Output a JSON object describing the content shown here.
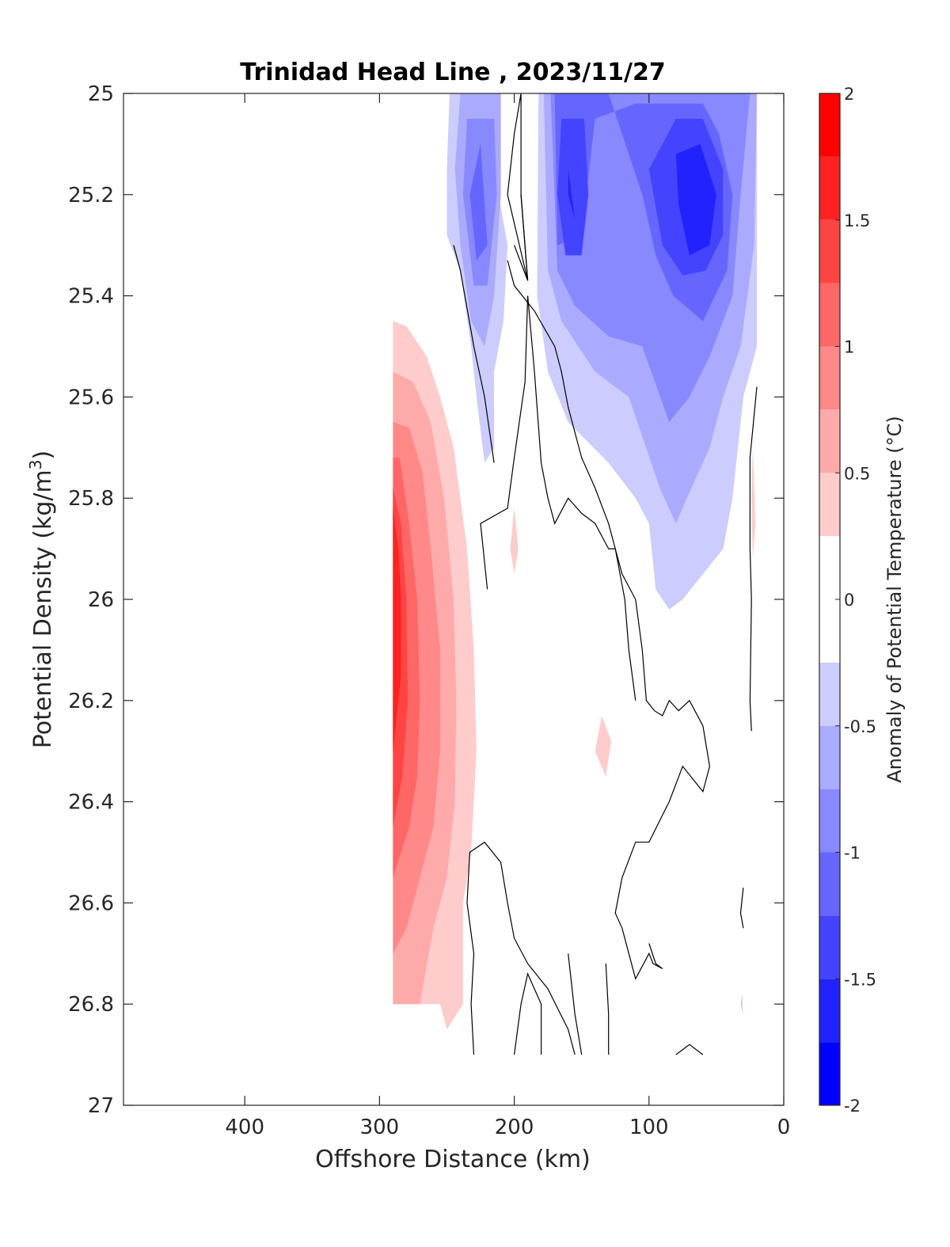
{
  "chart_data": {
    "type": "heatmap",
    "title": "Trinidad Head Line , 2023/11/27",
    "xlabel": "Offshore Distance (km)",
    "ylabel_main": "Potential Density (kg/m",
    "ylabel_sup": "3",
    "ylabel_close": ")",
    "colorbar_label": "Anomaly of Potential Temperature (°C)",
    "xlim": [
      490,
      0
    ],
    "x_reversed": true,
    "ylim": [
      25,
      27
    ],
    "y_reversed": true,
    "xticks": [
      400,
      300,
      200,
      100,
      0
    ],
    "yticks": [
      25,
      25.2,
      25.4,
      25.6,
      25.8,
      26,
      26.2,
      26.4,
      26.6,
      26.8,
      27
    ],
    "ytick_labels": [
      "25",
      "25.2",
      "25.4",
      "25.6",
      "25.8",
      "26",
      "26.2",
      "26.4",
      "26.6",
      "26.8",
      "27"
    ],
    "grid": false,
    "colorbar": {
      "limits": [
        -2,
        2
      ],
      "step": 0.25,
      "tick_values": [
        2,
        1.5,
        1,
        0.5,
        0,
        -0.5,
        -1,
        -1.5,
        -2
      ],
      "tick_labels": [
        "2",
        "1.5",
        "1",
        "0.5",
        "0",
        "-0.5",
        "-1",
        "-1.5",
        "-2"
      ],
      "colors": [
        "#0000ff",
        "#2222ff",
        "#4444ff",
        "#6666ff",
        "#8888ff",
        "#aaaaff",
        "#ccccff",
        "#ffffff",
        "#ffffff",
        "#ffcccc",
        "#ffaaaa",
        "#ff8888",
        "#ff6666",
        "#ff4444",
        "#ff2222",
        "#ff0000"
      ]
    },
    "contour_regions": [
      {
        "level": -0.25,
        "color": "#ccccff",
        "points": [
          [
            205,
            25
          ],
          [
            225,
            25
          ],
          [
            215,
            25.15
          ],
          [
            205,
            25.3
          ],
          [
            208,
            25.45
          ],
          [
            215,
            25.55
          ],
          [
            215,
            25.7
          ],
          [
            222,
            25.73
          ],
          [
            228,
            25.6
          ],
          [
            232,
            25.5
          ],
          [
            240,
            25.35
          ],
          [
            250,
            25.28
          ],
          [
            250,
            25.15
          ],
          [
            248,
            25
          ]
        ]
      },
      {
        "level": -0.5,
        "color": "#aaaaff",
        "points": [
          [
            210,
            25
          ],
          [
            240,
            25
          ],
          [
            244,
            25.15
          ],
          [
            240,
            25.3
          ],
          [
            232,
            25.45
          ],
          [
            222,
            25.5
          ],
          [
            215,
            25.4
          ],
          [
            210,
            25.2
          ]
        ]
      },
      {
        "level": -0.75,
        "color": "#8888ff",
        "points": [
          [
            215,
            25.05
          ],
          [
            235,
            25.05
          ],
          [
            238,
            25.2
          ],
          [
            230,
            25.38
          ],
          [
            220,
            25.38
          ],
          [
            213,
            25.2
          ]
        ]
      },
      {
        "level": -1.0,
        "color": "#6666ff",
        "points": [
          [
            225,
            25.1
          ],
          [
            233,
            25.2
          ],
          [
            228,
            25.33
          ],
          [
            220,
            25.3
          ]
        ]
      },
      {
        "level": -0.25,
        "color": "#ccccff",
        "points": [
          [
            182,
            25
          ],
          [
            20,
            25
          ],
          [
            20,
            25.5
          ],
          [
            30,
            25.6
          ],
          [
            38,
            25.8
          ],
          [
            45,
            25.9
          ],
          [
            60,
            25.95
          ],
          [
            75,
            26
          ],
          [
            85,
            26.02
          ],
          [
            95,
            25.98
          ],
          [
            100,
            25.85
          ],
          [
            110,
            25.8
          ],
          [
            130,
            25.73
          ],
          [
            160,
            25.65
          ],
          [
            175,
            25.55
          ],
          [
            183,
            25.4
          ]
        ]
      },
      {
        "level": -0.5,
        "color": "#aaaaff",
        "points": [
          [
            178,
            25
          ],
          [
            20,
            25
          ],
          [
            22,
            25.3
          ],
          [
            32,
            25.5
          ],
          [
            45,
            25.6
          ],
          [
            55,
            25.7
          ],
          [
            72,
            25.8
          ],
          [
            80,
            25.85
          ],
          [
            92,
            25.78
          ],
          [
            115,
            25.6
          ],
          [
            140,
            25.55
          ],
          [
            165,
            25.45
          ],
          [
            175,
            25.35
          ]
        ]
      },
      {
        "level": -0.75,
        "color": "#8888ff",
        "points": [
          [
            173,
            25
          ],
          [
            25,
            25
          ],
          [
            32,
            25.2
          ],
          [
            38,
            25.4
          ],
          [
            55,
            25.52
          ],
          [
            70,
            25.6
          ],
          [
            85,
            25.65
          ],
          [
            105,
            25.5
          ],
          [
            130,
            25.48
          ],
          [
            155,
            25.42
          ],
          [
            168,
            25.35
          ]
        ]
      },
      {
        "level": -1.0,
        "color": "#6666ff",
        "points": [
          [
            170,
            25
          ],
          [
            130,
            25
          ],
          [
            115,
            25.12
          ],
          [
            105,
            25.2
          ],
          [
            95,
            25.32
          ],
          [
            82,
            25.4
          ],
          [
            60,
            25.45
          ],
          [
            42,
            25.35
          ],
          [
            38,
            25.2
          ],
          [
            48,
            25.08
          ],
          [
            60,
            25.02
          ],
          [
            110,
            25.02
          ],
          [
            140,
            25.05
          ],
          [
            150,
            25.28
          ],
          [
            168,
            25.3
          ]
        ]
      },
      {
        "level": -1.25,
        "color": "#4444ff",
        "points": [
          [
            165,
            25.05
          ],
          [
            148,
            25.05
          ],
          [
            145,
            25.2
          ],
          [
            150,
            25.32
          ],
          [
            162,
            25.32
          ],
          [
            168,
            25.2
          ]
        ]
      },
      {
        "level": -1.25,
        "color": "#4444ff",
        "points": [
          [
            100,
            25.15
          ],
          [
            80,
            25.05
          ],
          [
            60,
            25.05
          ],
          [
            45,
            25.15
          ],
          [
            45,
            25.28
          ],
          [
            58,
            25.35
          ],
          [
            75,
            25.36
          ],
          [
            90,
            25.3
          ]
        ]
      },
      {
        "level": -1.5,
        "color": "#2222ff",
        "points": [
          [
            80,
            25.12
          ],
          [
            62,
            25.1
          ],
          [
            50,
            25.2
          ],
          [
            55,
            25.3
          ],
          [
            70,
            25.32
          ],
          [
            78,
            25.22
          ]
        ]
      },
      {
        "level": -1.5,
        "color": "#2222ff",
        "points": [
          [
            160,
            25.15
          ],
          [
            155,
            25.25
          ],
          [
            160,
            25.2
          ]
        ]
      },
      {
        "level": 0.25,
        "color": "#ffcccc",
        "points": [
          [
            290,
            25.45
          ],
          [
            280,
            25.46
          ],
          [
            265,
            25.52
          ],
          [
            255,
            25.6
          ],
          [
            245,
            25.7
          ],
          [
            235,
            25.9
          ],
          [
            230,
            26.1
          ],
          [
            228,
            26.3
          ],
          [
            232,
            26.5
          ],
          [
            238,
            26.6
          ],
          [
            238,
            26.8
          ],
          [
            250,
            26.85
          ],
          [
            255,
            26.8
          ],
          [
            290,
            26.8
          ]
        ]
      },
      {
        "level": 0.5,
        "color": "#ffaaaa",
        "points": [
          [
            290,
            25.55
          ],
          [
            275,
            25.57
          ],
          [
            262,
            25.65
          ],
          [
            252,
            25.8
          ],
          [
            245,
            26
          ],
          [
            243,
            26.2
          ],
          [
            244,
            26.4
          ],
          [
            250,
            26.55
          ],
          [
            260,
            26.65
          ],
          [
            270,
            26.8
          ],
          [
            290,
            26.8
          ]
        ]
      },
      {
        "level": 0.75,
        "color": "#ff8888",
        "points": [
          [
            290,
            25.65
          ],
          [
            278,
            25.66
          ],
          [
            268,
            25.75
          ],
          [
            262,
            25.9
          ],
          [
            255,
            26.1
          ],
          [
            255,
            26.3
          ],
          [
            260,
            26.45
          ],
          [
            270,
            26.55
          ],
          [
            280,
            26.65
          ],
          [
            290,
            26.7
          ]
        ]
      },
      {
        "level": 1.0,
        "color": "#ff6666",
        "points": [
          [
            290,
            25.72
          ],
          [
            285,
            25.72
          ],
          [
            278,
            25.85
          ],
          [
            272,
            26
          ],
          [
            270,
            26.2
          ],
          [
            272,
            26.35
          ],
          [
            278,
            26.45
          ],
          [
            290,
            26.55
          ]
        ]
      },
      {
        "level": 1.25,
        "color": "#ff4444",
        "points": [
          [
            290,
            25.78
          ],
          [
            284,
            25.85
          ],
          [
            280,
            26
          ],
          [
            279,
            26.2
          ],
          [
            283,
            26.35
          ],
          [
            290,
            26.45
          ]
        ]
      },
      {
        "level": 1.5,
        "color": "#ff2222",
        "points": [
          [
            290,
            25.82
          ],
          [
            286,
            25.9
          ],
          [
            284,
            26
          ],
          [
            284,
            26.15
          ],
          [
            288,
            26.25
          ],
          [
            290,
            26.3
          ]
        ]
      },
      {
        "level": 0.25,
        "color": "#ffcccc",
        "points": [
          [
            200,
            25.82
          ],
          [
            197,
            25.9
          ],
          [
            200,
            25.95
          ],
          [
            203,
            25.9
          ]
        ]
      },
      {
        "level": 0.25,
        "color": "#ffcccc",
        "points": [
          [
            135,
            26.23
          ],
          [
            128,
            26.28
          ],
          [
            132,
            26.35
          ],
          [
            140,
            26.3
          ]
        ]
      },
      {
        "level": 0.25,
        "color": "#ffcccc",
        "points": [
          [
            23,
            25.7
          ],
          [
            21,
            25.85
          ],
          [
            23,
            25.92
          ],
          [
            24,
            25.8
          ]
        ]
      },
      {
        "level": -0.25,
        "color": "#ccccff",
        "points": [
          [
            32,
            26.8
          ],
          [
            30,
            26.82
          ],
          [
            31,
            26.78
          ]
        ]
      }
    ],
    "zero_contours": [
      [
        [
          205,
          25.33
        ],
        [
          200,
          25.38
        ],
        [
          185,
          25.43
        ],
        [
          170,
          25.5
        ],
        [
          165,
          25.55
        ],
        [
          160,
          25.62
        ],
        [
          150,
          25.72
        ],
        [
          140,
          25.78
        ],
        [
          130,
          25.85
        ],
        [
          125,
          25.9
        ],
        [
          120,
          25.95
        ],
        [
          110,
          26
        ],
        [
          105,
          26.1
        ],
        [
          102,
          26.2
        ],
        [
          96,
          26.22
        ],
        [
          90,
          26.23
        ],
        [
          85,
          26.2
        ],
        [
          78,
          26.22
        ],
        [
          70,
          26.2
        ],
        [
          60,
          26.25
        ],
        [
          55,
          26.33
        ],
        [
          60,
          26.38
        ],
        [
          75,
          26.33
        ],
        [
          85,
          26.4
        ],
        [
          100,
          26.48
        ],
        [
          110,
          26.48
        ],
        [
          120,
          26.55
        ],
        [
          125,
          26.62
        ],
        [
          120,
          26.65
        ],
        [
          115,
          26.7
        ],
        [
          110,
          26.75
        ],
        [
          100,
          26.7
        ],
        [
          97,
          26.72
        ],
        [
          90,
          26.73
        ],
        [
          95,
          26.72
        ],
        [
          100,
          26.68
        ]
      ],
      [
        [
          195,
          25
        ],
        [
          200,
          25.08
        ],
        [
          205,
          25.2
        ],
        [
          190,
          25.37
        ],
        [
          195,
          25.2
        ]
      ],
      [
        [
          195,
          25
        ],
        [
          195,
          25.2
        ],
        [
          190,
          25.37
        ],
        [
          200,
          25.3
        ]
      ],
      [
        [
          215,
          25.73
        ],
        [
          222,
          25.6
        ],
        [
          230,
          25.5
        ],
        [
          240,
          25.35
        ],
        [
          245,
          25.3
        ]
      ],
      [
        [
          220,
          25.98
        ],
        [
          225,
          25.85
        ],
        [
          205,
          25.82
        ],
        [
          200,
          25.72
        ],
        [
          192,
          25.57
        ],
        [
          190,
          25.4
        ],
        [
          185,
          25.55
        ],
        [
          180,
          25.73
        ],
        [
          175,
          25.8
        ],
        [
          170,
          25.85
        ],
        [
          160,
          25.8
        ],
        [
          150,
          25.83
        ],
        [
          140,
          25.85
        ],
        [
          130,
          25.9
        ],
        [
          125,
          25.9
        ],
        [
          118,
          26.0
        ],
        [
          115,
          26.1
        ],
        [
          110,
          26.2
        ]
      ],
      [
        [
          20,
          25.58
        ],
        [
          25,
          25.72
        ],
        [
          25,
          25.9
        ],
        [
          24,
          26.0
        ],
        [
          25,
          26.2
        ],
        [
          24,
          26.26
        ]
      ],
      [
        [
          30,
          26.57
        ],
        [
          32,
          26.62
        ],
        [
          30,
          26.65
        ]
      ],
      [
        [
          230,
          26.9
        ],
        [
          232,
          26.8
        ],
        [
          230,
          26.7
        ],
        [
          235,
          26.6
        ],
        [
          233,
          26.5
        ],
        [
          222,
          26.48
        ],
        [
          210,
          26.52
        ],
        [
          205,
          26.6
        ],
        [
          200,
          26.67
        ],
        [
          190,
          26.72
        ],
        [
          175,
          26.77
        ],
        [
          160,
          26.85
        ],
        [
          155,
          26.9
        ]
      ],
      [
        [
          200,
          26.9
        ],
        [
          195,
          26.8
        ],
        [
          190,
          26.74
        ],
        [
          180,
          26.8
        ],
        [
          180,
          26.9
        ]
      ],
      [
        [
          150,
          26.9
        ],
        [
          155,
          26.82
        ],
        [
          160,
          26.7
        ]
      ],
      [
        [
          130,
          26.9
        ],
        [
          130,
          26.82
        ],
        [
          132,
          26.72
        ]
      ],
      [
        [
          80,
          26.9
        ],
        [
          70,
          26.88
        ],
        [
          60,
          26.9
        ]
      ]
    ]
  }
}
